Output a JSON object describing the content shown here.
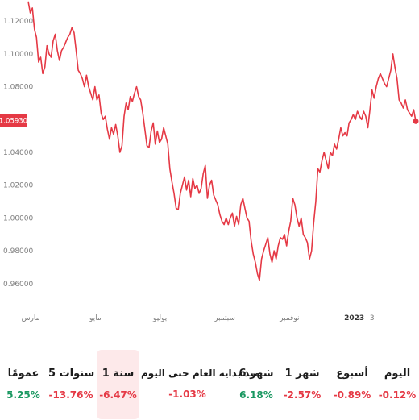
{
  "chart_data": {
    "type": "line",
    "y_ticks": [
      "1.12000",
      "1.10000",
      "1.08000",
      "1.04000",
      "1.02000",
      "1.00000",
      "0.98000",
      "0.96000"
    ],
    "y_tick_values": [
      1.12,
      1.1,
      1.08,
      1.04,
      1.02,
      1.0,
      0.98,
      0.96
    ],
    "ylim": [
      0.955,
      1.125
    ],
    "x_ticks": [
      {
        "label": "مارس",
        "month_index": 0.0,
        "bold": false
      },
      {
        "label": "مايو",
        "month_index": 2.0,
        "bold": false
      },
      {
        "label": "يوليو",
        "month_index": 4.0,
        "bold": false
      },
      {
        "label": "سبتمبر",
        "month_index": 6.0,
        "bold": false
      },
      {
        "label": "نوفمبر",
        "month_index": 8.0,
        "bold": false
      },
      {
        "label": "2023",
        "month_index": 10.0,
        "bold": true
      },
      {
        "label": "3",
        "month_index": 10.55,
        "bold": false
      }
    ],
    "xlim": [
      -0.1,
      11.95
    ],
    "current_value_label": "1.05930",
    "current_value": 1.0593,
    "line_color": "#e53945",
    "series": [
      {
        "values": [
          1.132,
          1.125,
          1.128,
          1.115,
          1.11,
          1.095,
          1.098,
          1.088,
          1.092,
          1.105,
          1.1,
          1.098,
          1.108,
          1.112,
          1.102,
          1.096,
          1.102,
          1.104,
          1.107,
          1.11,
          1.112,
          1.116,
          1.113,
          1.102,
          1.09,
          1.088,
          1.085,
          1.08,
          1.087,
          1.08,
          1.076,
          1.072,
          1.08,
          1.072,
          1.075,
          1.064,
          1.06,
          1.062,
          1.054,
          1.048,
          1.055,
          1.051,
          1.057,
          1.05,
          1.04,
          1.044,
          1.062,
          1.07,
          1.066,
          1.074,
          1.071,
          1.076,
          1.08,
          1.074,
          1.072,
          1.064,
          1.054,
          1.044,
          1.043,
          1.053,
          1.058,
          1.045,
          1.053,
          1.046,
          1.048,
          1.055,
          1.05,
          1.045,
          1.03,
          1.022,
          1.015,
          1.006,
          1.005,
          1.015,
          1.02,
          1.025,
          1.017,
          1.023,
          1.013,
          1.024,
          1.018,
          1.02,
          1.015,
          1.018,
          1.027,
          1.032,
          1.012,
          1.02,
          1.023,
          1.014,
          1.011,
          1.008,
          1.002,
          0.998,
          0.996,
          1.0,
          0.996,
          1.0,
          1.003,
          0.995,
          1.001,
          0.996,
          1.008,
          1.012,
          1.006,
          1.0,
          0.998,
          0.986,
          0.978,
          0.973,
          0.966,
          0.962,
          0.975,
          0.98,
          0.984,
          0.988,
          0.978,
          0.973,
          0.98,
          0.975,
          0.983,
          0.988,
          0.987,
          0.99,
          0.983,
          0.992,
          0.998,
          1.012,
          1.008,
          1.0,
          0.995,
          1.0,
          0.99,
          0.988,
          0.985,
          0.975,
          0.98,
          0.997,
          1.01,
          1.03,
          1.028,
          1.035,
          1.04,
          1.035,
          1.03,
          1.04,
          1.038,
          1.045,
          1.042,
          1.048,
          1.055,
          1.05,
          1.052,
          1.05,
          1.058,
          1.06,
          1.063,
          1.06,
          1.065,
          1.062,
          1.06,
          1.065,
          1.062,
          1.055,
          1.066,
          1.078,
          1.073,
          1.08,
          1.085,
          1.088,
          1.085,
          1.082,
          1.08,
          1.085,
          1.09,
          1.1,
          1.092,
          1.085,
          1.072,
          1.07,
          1.067,
          1.072,
          1.066,
          1.064,
          1.062,
          1.066,
          1.059
        ]
      }
    ],
    "grid": false,
    "legend": "none"
  },
  "tabs": [
    {
      "label": "اليوم",
      "value": "-0.12%",
      "color": "#e53945",
      "selected": false
    },
    {
      "label": "أسبوع",
      "value": "-0.89%",
      "color": "#e53945",
      "selected": false
    },
    {
      "label": "1 شهر",
      "value": "-2.57%",
      "color": "#e53945",
      "selected": false
    },
    {
      "label": "6 شهر",
      "value": "6.18%",
      "color": "#1a9861",
      "selected": false
    },
    {
      "label": "منذ بداية العام حتى اليوم",
      "value": "-1.03%",
      "color": "#e53945",
      "selected": false
    },
    {
      "label": "1 سنة",
      "value": "-6.47%",
      "color": "#e53945",
      "selected": true
    },
    {
      "label": "5 سنوات",
      "value": "-13.76%",
      "color": "#e53945",
      "selected": false
    },
    {
      "label": "عمومًا",
      "value": "5.25%",
      "color": "#1a9861",
      "selected": false
    }
  ]
}
